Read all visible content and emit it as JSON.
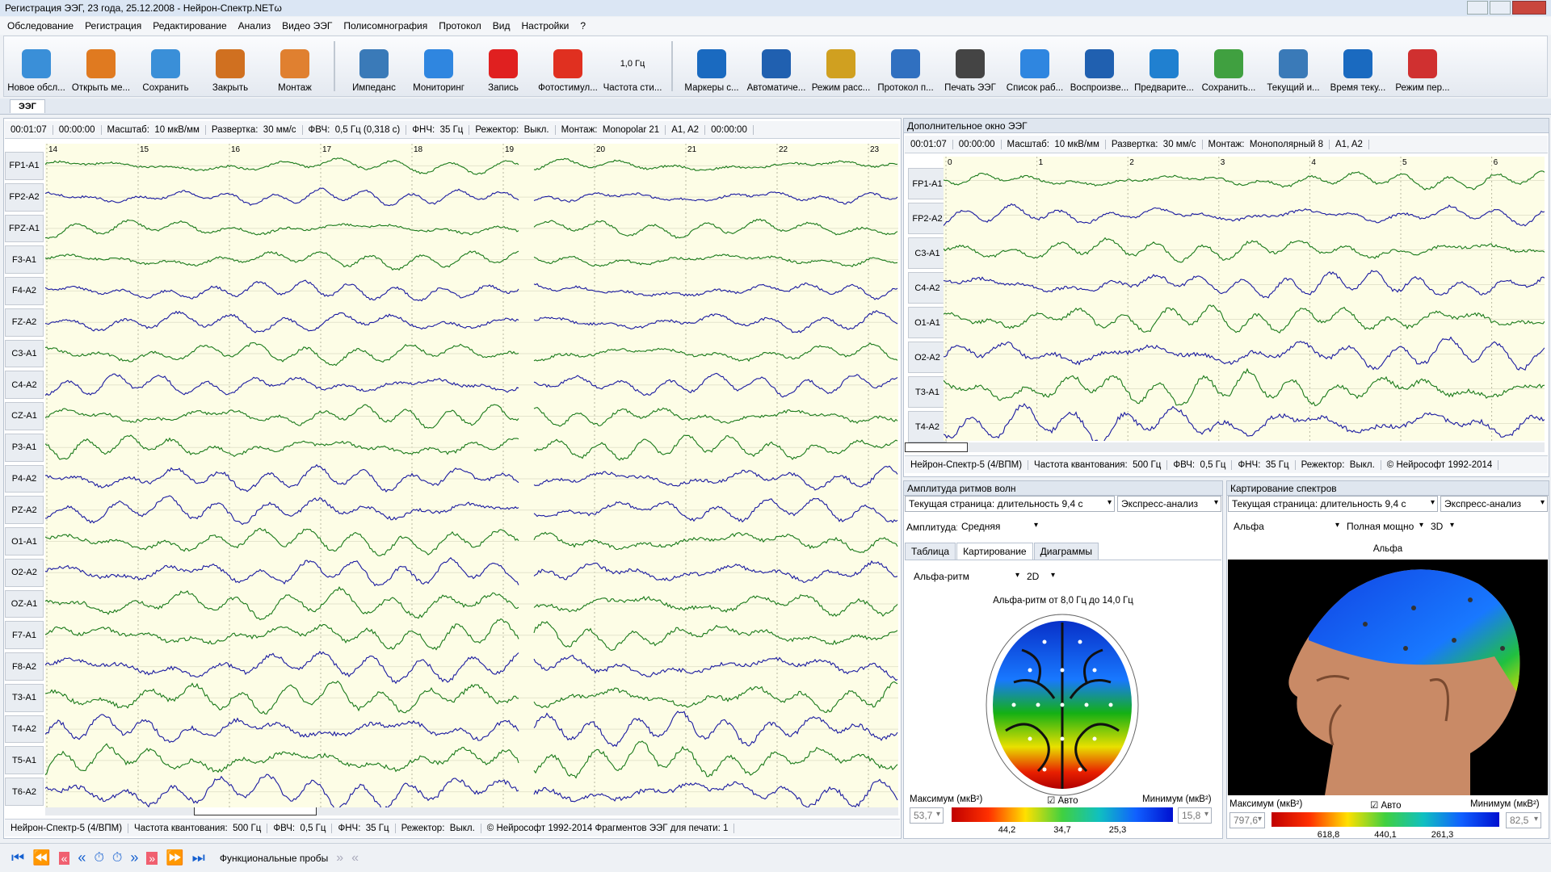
{
  "window_title": "Регистрация ЭЭГ, 23 года, 25.12.2008 - Нейрон-Спектр.NETω",
  "menu": [
    "Обследование",
    "Регистрация",
    "Редактирование",
    "Анализ",
    "Видео ЭЭГ",
    "Полисомнография",
    "Протокол",
    "Вид",
    "Настройки",
    "?"
  ],
  "toolbar": [
    {
      "label": "Новое обсл..."
    },
    {
      "label": "Открыть ме..."
    },
    {
      "label": "Сохранить"
    },
    {
      "label": "Закрыть"
    },
    {
      "label": "Монтаж"
    },
    {
      "label": "Импеданс"
    },
    {
      "label": "Мониторинг"
    },
    {
      "label": "Запись"
    },
    {
      "label": "Фотостимул..."
    },
    {
      "label": "Частота сти...",
      "icon_text": "1,0 Гц"
    },
    {
      "label": "Маркеры с..."
    },
    {
      "label": "Автоматиче..."
    },
    {
      "label": "Режим расс..."
    },
    {
      "label": "Протокол п..."
    },
    {
      "label": "Печать ЭЭГ"
    },
    {
      "label": "Список раб..."
    },
    {
      "label": "Воспроизве..."
    },
    {
      "label": "Предварите..."
    },
    {
      "label": "Сохранить..."
    },
    {
      "label": "Текущий и..."
    },
    {
      "label": "Время теку..."
    },
    {
      "label": "Режим пер..."
    }
  ],
  "tab": "ЭЭГ",
  "main": {
    "params": [
      "00:01:07",
      "00:00:00",
      "Масштаб:  10 мкВ/мм",
      "Развертка:  30 мм/с",
      "ФВЧ:  0,5 Гц (0,318 с)",
      "ФНЧ:  35 Гц",
      "Режектор:  Выкл.",
      "Монтаж:  Monopolar 21",
      "A1, A2",
      "00:00:00"
    ],
    "time_marks": [
      "14",
      "15",
      "16",
      "17",
      "18",
      "19",
      "20",
      "21",
      "22",
      "23"
    ],
    "channels": [
      {
        "label": "FP1-A1",
        "color": "#1a7a1a"
      },
      {
        "label": "FP2-A2",
        "color": "#1a1aa0"
      },
      {
        "label": "FPZ-A1",
        "color": "#1a7a1a"
      },
      {
        "label": "F3-A1",
        "color": "#1a7a1a"
      },
      {
        "label": "F4-A2",
        "color": "#1a1aa0"
      },
      {
        "label": "FZ-A2",
        "color": "#1a1aa0"
      },
      {
        "label": "C3-A1",
        "color": "#1a7a1a"
      },
      {
        "label": "C4-A2",
        "color": "#1a1aa0"
      },
      {
        "label": "CZ-A1",
        "color": "#1a7a1a"
      },
      {
        "label": "P3-A1",
        "color": "#1a7a1a"
      },
      {
        "label": "P4-A2",
        "color": "#1a1aa0"
      },
      {
        "label": "PZ-A2",
        "color": "#1a1aa0"
      },
      {
        "label": "O1-A1",
        "color": "#1a7a1a"
      },
      {
        "label": "O2-A2",
        "color": "#1a1aa0"
      },
      {
        "label": "OZ-A1",
        "color": "#1a7a1a"
      },
      {
        "label": "F7-A1",
        "color": "#1a7a1a"
      },
      {
        "label": "F8-A2",
        "color": "#1a1aa0"
      },
      {
        "label": "T3-A1",
        "color": "#1a7a1a"
      },
      {
        "label": "T4-A2",
        "color": "#1a1aa0"
      },
      {
        "label": "T5-A1",
        "color": "#1a7a1a"
      },
      {
        "label": "T6-A2",
        "color": "#1a1aa0"
      }
    ],
    "status": [
      "Нейрон-Спектр-5 (4/ВПМ)",
      "Частота квантования:  500 Гц",
      "ФВЧ:  0,5 Гц",
      "ФНЧ:  35 Гц",
      "Режектор:  Выкл.",
      "© Нейрософт 1992-2014 Фрагментов ЭЭГ для печати: 1"
    ]
  },
  "secondary": {
    "title": "Дополнительное окно ЭЭГ",
    "params": [
      "00:01:07",
      "00:00:00",
      "Масштаб:  10 мкВ/мм",
      "Развертка:  30 мм/с",
      "Монтаж:  Монополярный 8",
      "A1, A2"
    ],
    "time_marks": [
      "0",
      "1",
      "2",
      "3",
      "4",
      "5",
      "6"
    ],
    "channels": [
      {
        "label": "FP1-A1",
        "color": "#1a7a1a"
      },
      {
        "label": "FP2-A2",
        "color": "#1a1aa0"
      },
      {
        "label": "C3-A1",
        "color": "#1a7a1a"
      },
      {
        "label": "C4-A2",
        "color": "#1a1aa0"
      },
      {
        "label": "O1-A1",
        "color": "#1a7a1a"
      },
      {
        "label": "O2-A2",
        "color": "#1a1aa0"
      },
      {
        "label": "T3-A1",
        "color": "#1a7a1a"
      },
      {
        "label": "T4-A2",
        "color": "#1a1aa0"
      }
    ],
    "status": [
      "Нейрон-Спектр-5 (4/ВПМ)",
      "Частота квантования:  500 Гц",
      "ФВЧ:  0,5 Гц",
      "ФНЧ:  35 Гц",
      "Режектор:  Выкл.",
      "© Нейрософт 1992-2014"
    ]
  },
  "amplitude": {
    "title": "Амплитуда ритмов волн",
    "page_select": "Текущая страница: длительность 9,4 с",
    "analysis_select": "Экспресс-анализ",
    "amp_label": "Амплитуда:",
    "amp_select": "Средняя",
    "tabs": [
      "Таблица",
      "Картирование",
      "Диаграммы"
    ],
    "rhythm_select": "Альфа-ритм",
    "mode_select": "2D",
    "caption": "Альфа-ритм от 8,0 Гц до 14,0 Гц",
    "max_label": "Максимум (мкВ²)",
    "auto_label": "Авто",
    "min_label": "Минимум (мкВ²)",
    "max_value": "53,7",
    "min_value": "15,8",
    "scale_labels": [
      "44,2",
      "34,7",
      "25,3"
    ]
  },
  "spectrum": {
    "title": "Картирование спектров",
    "page_select": "Текущая страница: длительность 9,4 с",
    "analysis_select": "Экспресс-анализ",
    "band_select": "Альфа",
    "power_select": "Полная мощно",
    "mode_select": "3D",
    "caption": "Альфа",
    "max_label": "Максимум (мкВ²)",
    "auto_label": "Авто",
    "min_label": "Минимум (мкВ²)",
    "max_value": "797,6",
    "min_value": "82,5",
    "scale_labels": [
      "618,8",
      "440,1",
      "261,3"
    ]
  },
  "bottom": {
    "label": "Функциональные пробы"
  }
}
